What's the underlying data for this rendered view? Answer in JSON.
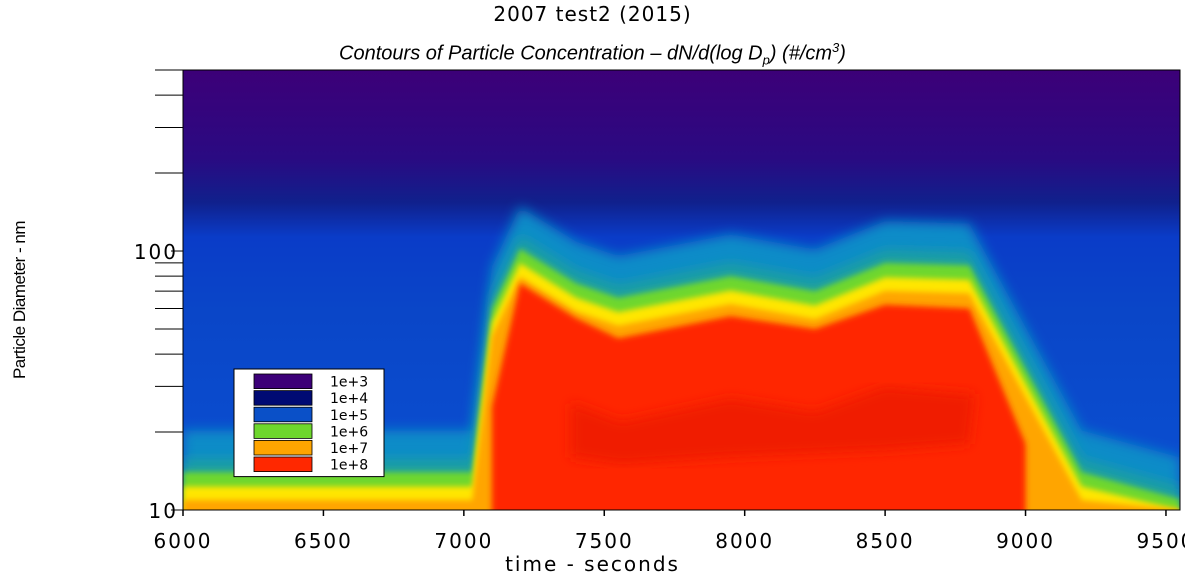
{
  "chart_data": {
    "type": "heatmap",
    "title": "2007 test2 (2015)",
    "subtitle": {
      "pre": "Contours of Particle Concentration – dN/d(log D",
      "sub": "p",
      "mid": ") (#/cm",
      "sup": "3",
      "post": ")"
    },
    "xlabel": "time - seconds",
    "ylabel": "Particle Diameter - nm",
    "xlim": [
      6000,
      9550
    ],
    "ylim": [
      10,
      500
    ],
    "y_scale": "log",
    "x_ticks": [
      6000,
      6500,
      7000,
      7500,
      8000,
      8500,
      9000,
      9500
    ],
    "y_tick_labels": [
      {
        "value": 10,
        "label": "10"
      },
      {
        "value": 100,
        "label": "100"
      }
    ],
    "legend": {
      "placement": "lower-left",
      "entries": [
        {
          "label": "1e+3",
          "color": "#3c0078"
        },
        {
          "label": "1e+4",
          "color": "#000a73"
        },
        {
          "label": "1e+5",
          "color": "#0a50c8"
        },
        {
          "label": "1e+6",
          "color": "#6ed72d"
        },
        {
          "label": "1e+7",
          "color": "#ffa500"
        },
        {
          "label": "1e+8",
          "color": "#ff2800"
        }
      ]
    },
    "concentration_levels": [
      1000.0,
      10000.0,
      100000.0,
      1000000.0,
      10000000.0,
      100000000.0
    ],
    "plume_profile": [
      {
        "t": 6000,
        "outer_top": 14,
        "red_top": null
      },
      {
        "t": 7030,
        "outer_top": 14,
        "red_top": null
      },
      {
        "t": 7100,
        "outer_top": 60,
        "red_top": 25
      },
      {
        "t": 7200,
        "outer_top": 102,
        "red_top": 75
      },
      {
        "t": 7400,
        "outer_top": 75,
        "red_top": 55
      },
      {
        "t": 7550,
        "outer_top": 66,
        "red_top": 46
      },
      {
        "t": 7950,
        "outer_top": 80,
        "red_top": 56
      },
      {
        "t": 8250,
        "outer_top": 70,
        "red_top": 50
      },
      {
        "t": 8500,
        "outer_top": 90,
        "red_top": 62
      },
      {
        "t": 8800,
        "outer_top": 88,
        "red_top": 60
      },
      {
        "t": 9000,
        "outer_top": 35,
        "red_top": 18
      },
      {
        "t": 9200,
        "outer_top": 14,
        "red_top": null
      },
      {
        "t": 9550,
        "outer_top": 11,
        "red_top": null
      }
    ]
  }
}
